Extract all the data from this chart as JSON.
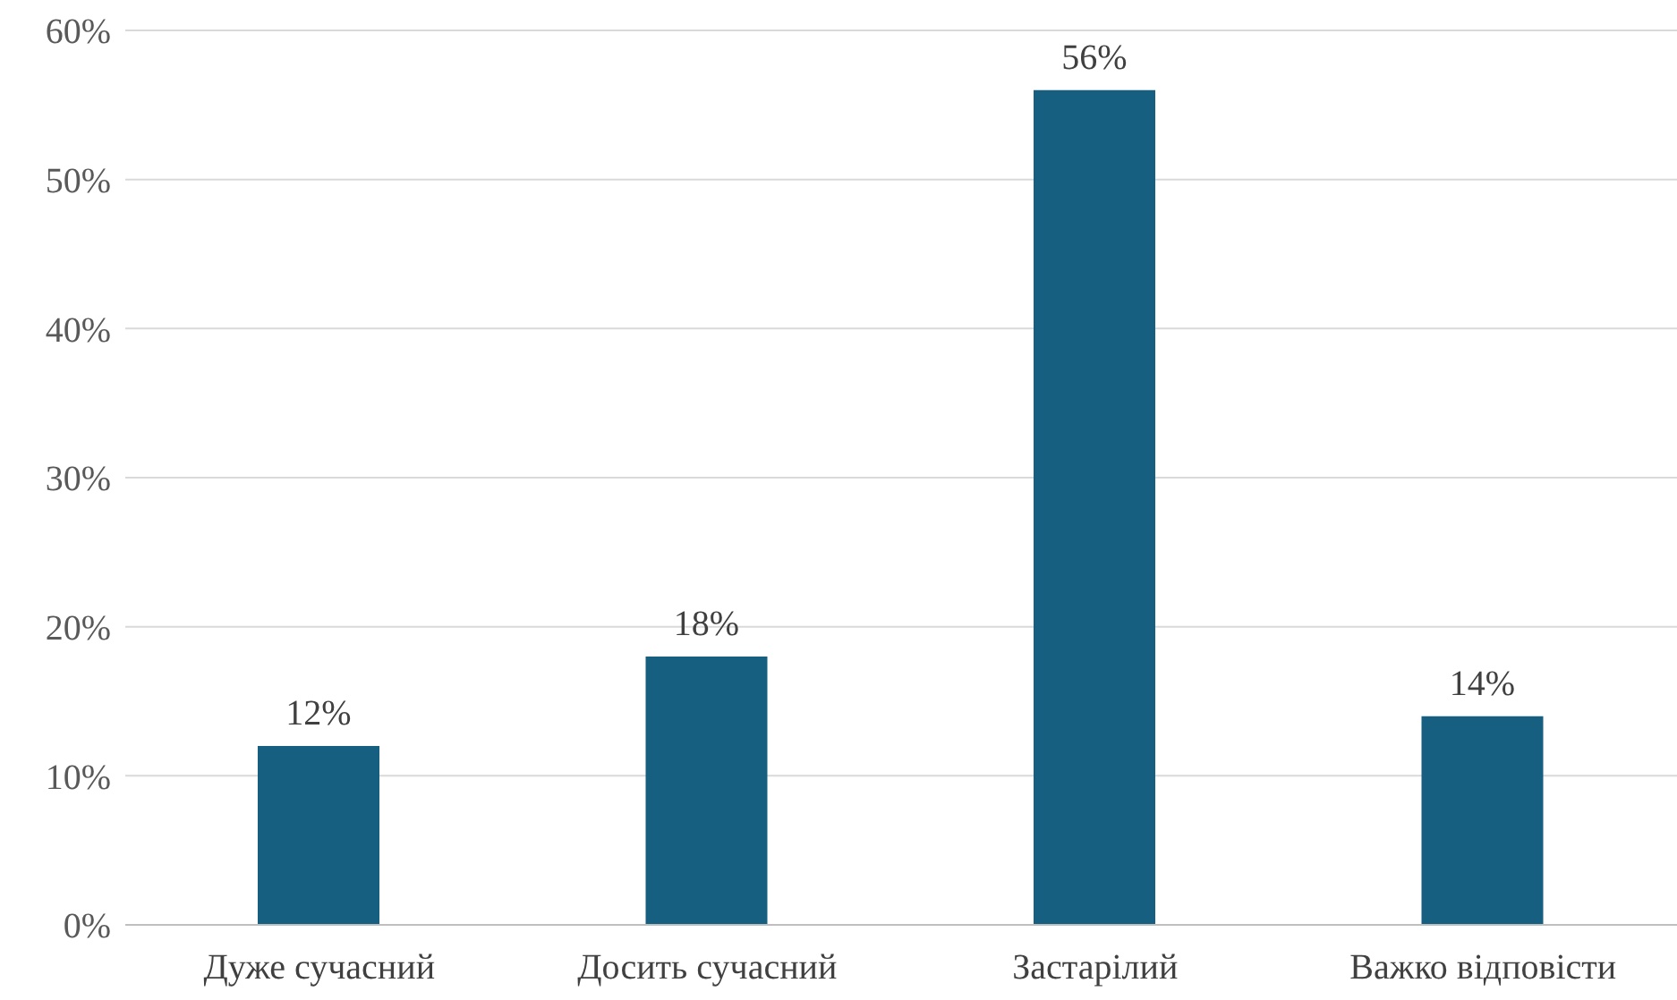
{
  "chart_data": {
    "type": "bar",
    "categories": [
      "Дуже сучасний",
      "Досить сучасний",
      "Застарілий",
      "Важко відповісти"
    ],
    "values": [
      12,
      18,
      56,
      14
    ],
    "color": "#175f80",
    "value_labels": [
      "12%",
      "18%",
      "56%",
      "14%"
    ],
    "ylim": [
      0,
      60
    ],
    "yticks": [
      {
        "value": 0,
        "label": "0%"
      },
      {
        "value": 10,
        "label": "10%"
      },
      {
        "value": 20,
        "label": "20%"
      },
      {
        "value": 30,
        "label": "30%"
      },
      {
        "value": 40,
        "label": "40%"
      },
      {
        "value": 50,
        "label": "50%"
      },
      {
        "value": 60,
        "label": "60%"
      }
    ],
    "grid": "y"
  }
}
